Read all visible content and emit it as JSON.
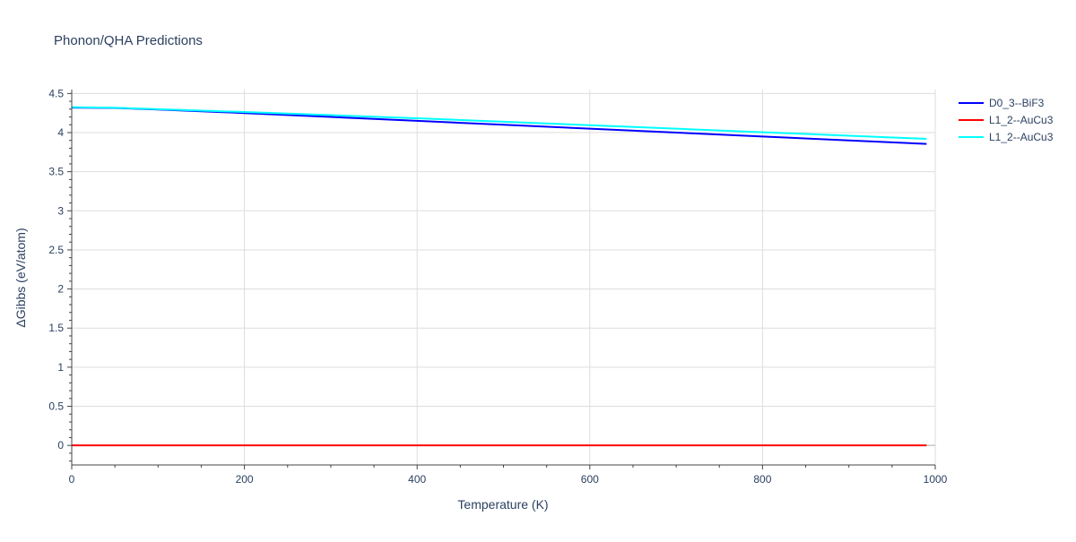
{
  "chart_data": {
    "type": "line",
    "title": "Phonon/QHA Predictions",
    "xlabel": "Temperature (K)",
    "ylabel": "ΔGibbs (eV/atom)",
    "xlim": [
      0,
      1000
    ],
    "ylim": [
      -0.25,
      4.55
    ],
    "grid": true,
    "legend_position": "top-right",
    "x_ticks": [
      {
        "value": 0,
        "label": "0"
      },
      {
        "value": 200,
        "label": "200"
      },
      {
        "value": 400,
        "label": "400"
      },
      {
        "value": 600,
        "label": "600"
      },
      {
        "value": 800,
        "label": "800"
      },
      {
        "value": 1000,
        "label": "1000"
      }
    ],
    "y_ticks": [
      {
        "value": 0,
        "label": "0"
      },
      {
        "value": 0.5,
        "label": "0.5"
      },
      {
        "value": 1,
        "label": "1"
      },
      {
        "value": 1.5,
        "label": "1.5"
      },
      {
        "value": 2,
        "label": "2"
      },
      {
        "value": 2.5,
        "label": "2.5"
      },
      {
        "value": 3,
        "label": "3"
      },
      {
        "value": 3.5,
        "label": "3.5"
      },
      {
        "value": 4,
        "label": "4"
      },
      {
        "value": 4.5,
        "label": "4.5"
      }
    ],
    "series": [
      {
        "name": "D0_3--BiF3",
        "color": "#0000ff",
        "x": [
          0,
          50,
          100,
          200,
          300,
          400,
          500,
          600,
          700,
          800,
          900,
          990
        ],
        "y": [
          4.32,
          4.315,
          4.295,
          4.25,
          4.2,
          4.15,
          4.1,
          4.05,
          4.0,
          3.95,
          3.9,
          3.855
        ]
      },
      {
        "name": "L1_2--AuCu3",
        "color": "#ff0000",
        "x": [
          0,
          990
        ],
        "y": [
          0,
          0
        ]
      },
      {
        "name": "L1_2--AuCu3",
        "color": "#00ffff",
        "x": [
          0,
          50,
          100,
          200,
          300,
          400,
          500,
          600,
          700,
          800,
          900,
          990
        ],
        "y": [
          4.325,
          4.318,
          4.3,
          4.263,
          4.223,
          4.183,
          4.139,
          4.094,
          4.05,
          4.005,
          3.96,
          3.92
        ]
      }
    ]
  }
}
